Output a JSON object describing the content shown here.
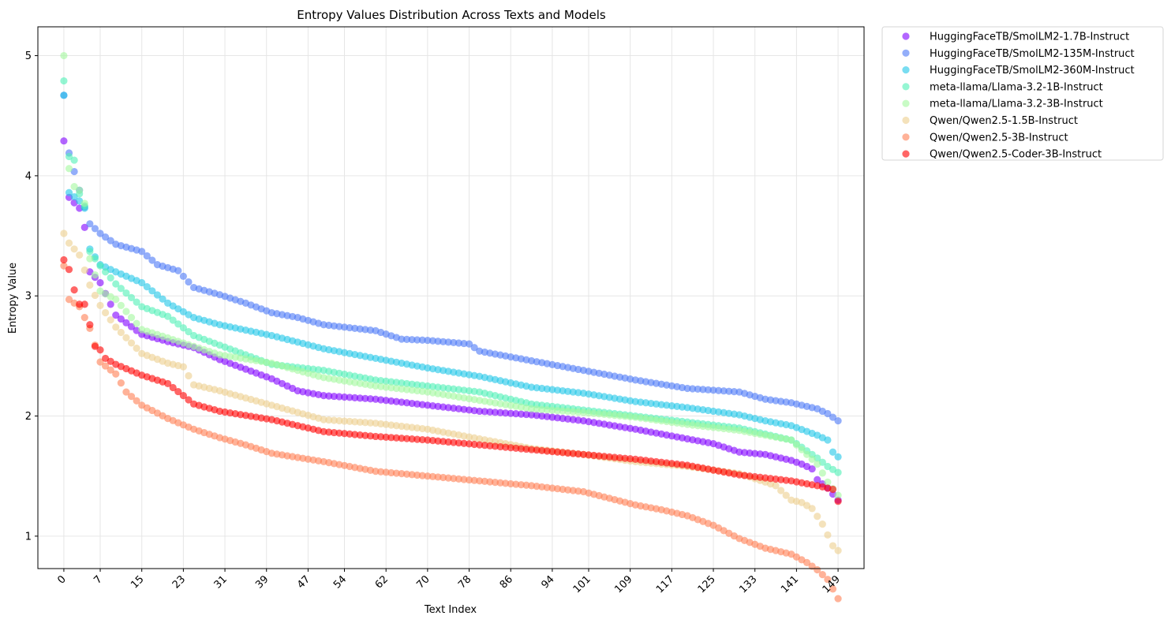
{
  "chart_data": {
    "type": "scatter",
    "title": "Entropy Values Distribution Across Texts and Models",
    "xlabel": "Text Index",
    "ylabel": "Entropy Value",
    "xlim": [
      -5,
      154
    ],
    "ylim": [
      0.73,
      5.24
    ],
    "xticks": [
      0,
      7,
      15,
      23,
      31,
      39,
      47,
      54,
      62,
      70,
      78,
      86,
      94,
      101,
      109,
      117,
      125,
      133,
      141,
      149
    ],
    "xtick_labels": [
      "0",
      "7",
      "15",
      "23",
      "31",
      "39",
      "47",
      "54",
      "62",
      "70",
      "78",
      "86",
      "94",
      "101",
      "109",
      "117",
      "125",
      "133",
      "141",
      "149"
    ],
    "yticks": [
      1,
      2,
      3,
      4,
      5
    ],
    "ytick_labels": [
      "1",
      "2",
      "3",
      "4",
      "5"
    ],
    "grid": true,
    "legend_position": "outside-top-right",
    "marker_alpha": 0.6,
    "n_points": 150,
    "series": [
      {
        "name": "HuggingFaceTB/SmolLM2-1.7B-Instruct",
        "color": "#8000ff",
        "x": [
          0,
          1,
          3,
          4,
          5,
          7,
          10,
          15,
          20,
          25,
          30,
          40,
          45,
          50,
          60,
          70,
          80,
          90,
          100,
          110,
          120,
          125,
          130,
          135,
          140,
          142,
          144,
          145,
          147,
          149
        ],
        "y": [
          4.29,
          3.82,
          3.73,
          3.57,
          3.2,
          3.11,
          2.84,
          2.68,
          2.62,
          2.57,
          2.47,
          2.31,
          2.21,
          2.17,
          2.14,
          2.09,
          2.04,
          2.01,
          1.96,
          1.89,
          1.81,
          1.77,
          1.7,
          1.68,
          1.63,
          1.6,
          1.56,
          1.47,
          1.4,
          1.3
        ]
      },
      {
        "name": "HuggingFaceTB/SmolLM2-135M-Instruct",
        "color": "#4b78f6",
        "x": [
          0,
          1,
          3,
          5,
          7,
          10,
          15,
          18,
          22,
          25,
          30,
          35,
          40,
          45,
          50,
          60,
          65,
          70,
          78,
          80,
          90,
          100,
          110,
          120,
          130,
          135,
          140,
          145,
          147,
          149
        ],
        "y": [
          4.67,
          4.19,
          3.88,
          3.6,
          3.52,
          3.43,
          3.37,
          3.26,
          3.21,
          3.07,
          3.01,
          2.94,
          2.86,
          2.82,
          2.76,
          2.71,
          2.64,
          2.63,
          2.6,
          2.54,
          2.46,
          2.38,
          2.3,
          2.23,
          2.2,
          2.14,
          2.11,
          2.06,
          2.02,
          1.96
        ]
      },
      {
        "name": "HuggingFaceTB/SmolLM2-360M-Instruct",
        "color": "#1fc7e8",
        "x": [
          0,
          1,
          3,
          4,
          5,
          7,
          10,
          15,
          20,
          25,
          30,
          40,
          50,
          60,
          70,
          80,
          90,
          100,
          110,
          120,
          130,
          135,
          140,
          145,
          147,
          148,
          149
        ],
        "y": [
          4.67,
          3.86,
          3.79,
          3.73,
          3.39,
          3.26,
          3.2,
          3.11,
          2.94,
          2.82,
          2.76,
          2.67,
          2.56,
          2.48,
          2.4,
          2.33,
          2.24,
          2.19,
          2.12,
          2.07,
          2.01,
          1.96,
          1.92,
          1.84,
          1.8,
          1.7,
          1.66
        ]
      },
      {
        "name": "meta-llama/Llama-3.2-1B-Instruct",
        "color": "#4ef0b6",
        "x": [
          0,
          1,
          2,
          3,
          4,
          5,
          7,
          10,
          15,
          20,
          25,
          30,
          40,
          50,
          60,
          70,
          80,
          90,
          100,
          110,
          120,
          130,
          140,
          145,
          147,
          149
        ],
        "y": [
          4.79,
          4.16,
          4.13,
          3.85,
          3.75,
          3.37,
          3.25,
          3.1,
          2.91,
          2.83,
          2.67,
          2.59,
          2.43,
          2.38,
          2.3,
          2.25,
          2.2,
          2.1,
          2.05,
          2.0,
          1.95,
          1.9,
          1.8,
          1.65,
          1.58,
          1.53
        ]
      },
      {
        "name": "meta-llama/Llama-3.2-3B-Instruct",
        "color": "#a4f89e",
        "x": [
          0,
          1,
          2,
          3,
          4,
          5,
          7,
          10,
          15,
          20,
          25,
          30,
          40,
          50,
          60,
          70,
          80,
          90,
          100,
          110,
          120,
          130,
          140,
          145,
          147,
          149
        ],
        "y": [
          5.0,
          4.06,
          3.91,
          3.88,
          3.77,
          3.31,
          3.04,
          2.97,
          2.72,
          2.65,
          2.58,
          2.51,
          2.44,
          2.32,
          2.25,
          2.2,
          2.13,
          2.06,
          2.03,
          1.99,
          1.93,
          1.88,
          1.8,
          1.6,
          1.45,
          1.34
        ]
      },
      {
        "name": "Qwen/Qwen2.5-1.5B-Instruct",
        "color": "#ecce8e",
        "x": [
          0,
          1,
          2,
          3,
          5,
          7,
          10,
          15,
          20,
          23,
          25,
          30,
          40,
          50,
          60,
          70,
          80,
          90,
          100,
          110,
          120,
          130,
          135,
          137,
          140,
          142,
          144,
          146,
          148,
          149
        ],
        "y": [
          3.52,
          3.44,
          3.39,
          3.34,
          3.09,
          2.92,
          2.74,
          2.52,
          2.44,
          2.41,
          2.26,
          2.21,
          2.09,
          1.97,
          1.94,
          1.89,
          1.81,
          1.73,
          1.68,
          1.62,
          1.58,
          1.52,
          1.45,
          1.42,
          1.3,
          1.28,
          1.23,
          1.1,
          0.92,
          0.88
        ]
      },
      {
        "name": "Qwen/Qwen2.5-3B-Instruct",
        "color": "#ff7e53",
        "x": [
          0,
          1,
          3,
          5,
          7,
          10,
          12,
          15,
          20,
          25,
          30,
          35,
          40,
          50,
          60,
          70,
          80,
          90,
          100,
          110,
          115,
          120,
          125,
          130,
          135,
          140,
          143,
          145,
          147,
          148,
          149
        ],
        "y": [
          3.25,
          2.97,
          2.91,
          2.73,
          2.45,
          2.35,
          2.2,
          2.09,
          1.98,
          1.89,
          1.82,
          1.76,
          1.69,
          1.62,
          1.54,
          1.5,
          1.46,
          1.42,
          1.37,
          1.26,
          1.22,
          1.17,
          1.09,
          0.98,
          0.9,
          0.85,
          0.78,
          0.72,
          0.64,
          0.56,
          0.48
        ]
      },
      {
        "name": "Qwen/Qwen2.5-Coder-3B-Instruct",
        "color": "#ff0000",
        "x": [
          0,
          1,
          2,
          3,
          4,
          5,
          6,
          7,
          8,
          10,
          15,
          20,
          23,
          25,
          30,
          40,
          50,
          60,
          70,
          80,
          90,
          100,
          110,
          120,
          130,
          140,
          145,
          148,
          149
        ],
        "y": [
          3.3,
          3.22,
          3.05,
          2.93,
          2.93,
          2.76,
          2.58,
          2.55,
          2.48,
          2.43,
          2.34,
          2.27,
          2.17,
          2.1,
          2.04,
          1.97,
          1.87,
          1.83,
          1.8,
          1.76,
          1.72,
          1.68,
          1.64,
          1.59,
          1.51,
          1.46,
          1.42,
          1.39,
          1.29
        ]
      }
    ]
  }
}
